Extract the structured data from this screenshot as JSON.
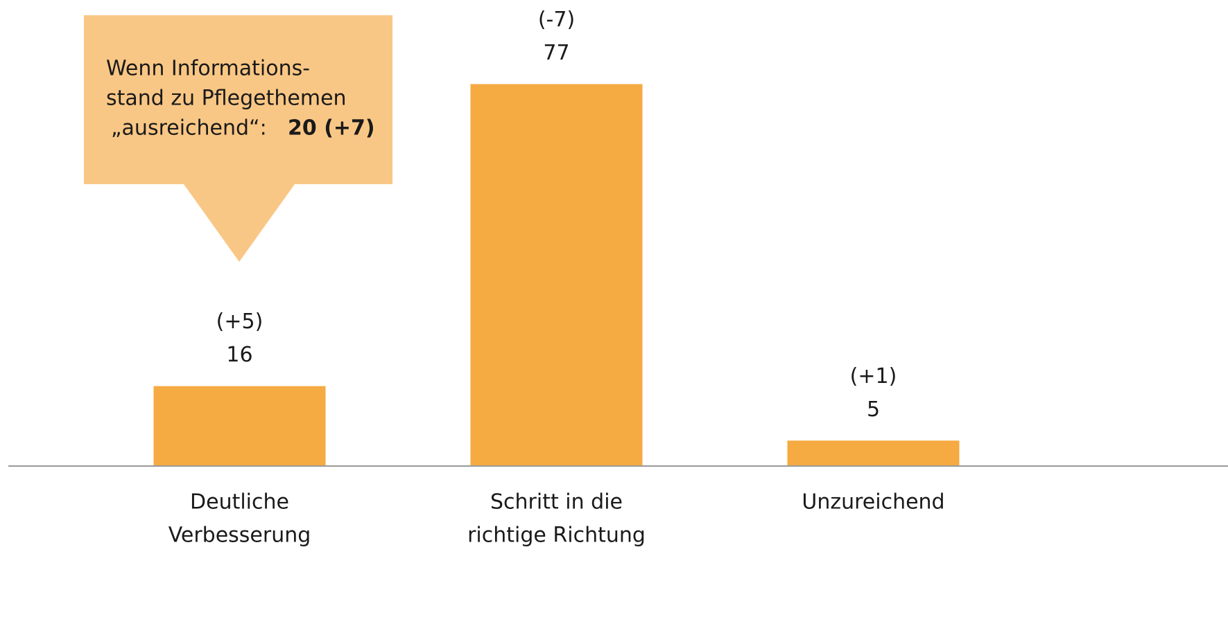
{
  "chart_data": {
    "type": "bar",
    "categories": [
      [
        "Deutliche",
        "Verbesserung"
      ],
      [
        "Schritt in die",
        "richtige Richtung"
      ],
      [
        "Unzureichend"
      ]
    ],
    "values": [
      16,
      77,
      5
    ],
    "change_labels": [
      "(+5)",
      "(-7)",
      "(+1)"
    ],
    "color": "#f5aa42",
    "ylim": [
      0,
      80
    ],
    "annotation": {
      "lines": [
        "Wenn Informations-",
        "stand zu Pflegethemen",
        "„ausreichend“:"
      ],
      "highlight": "20 (+7)",
      "color": "#f9c785"
    }
  }
}
